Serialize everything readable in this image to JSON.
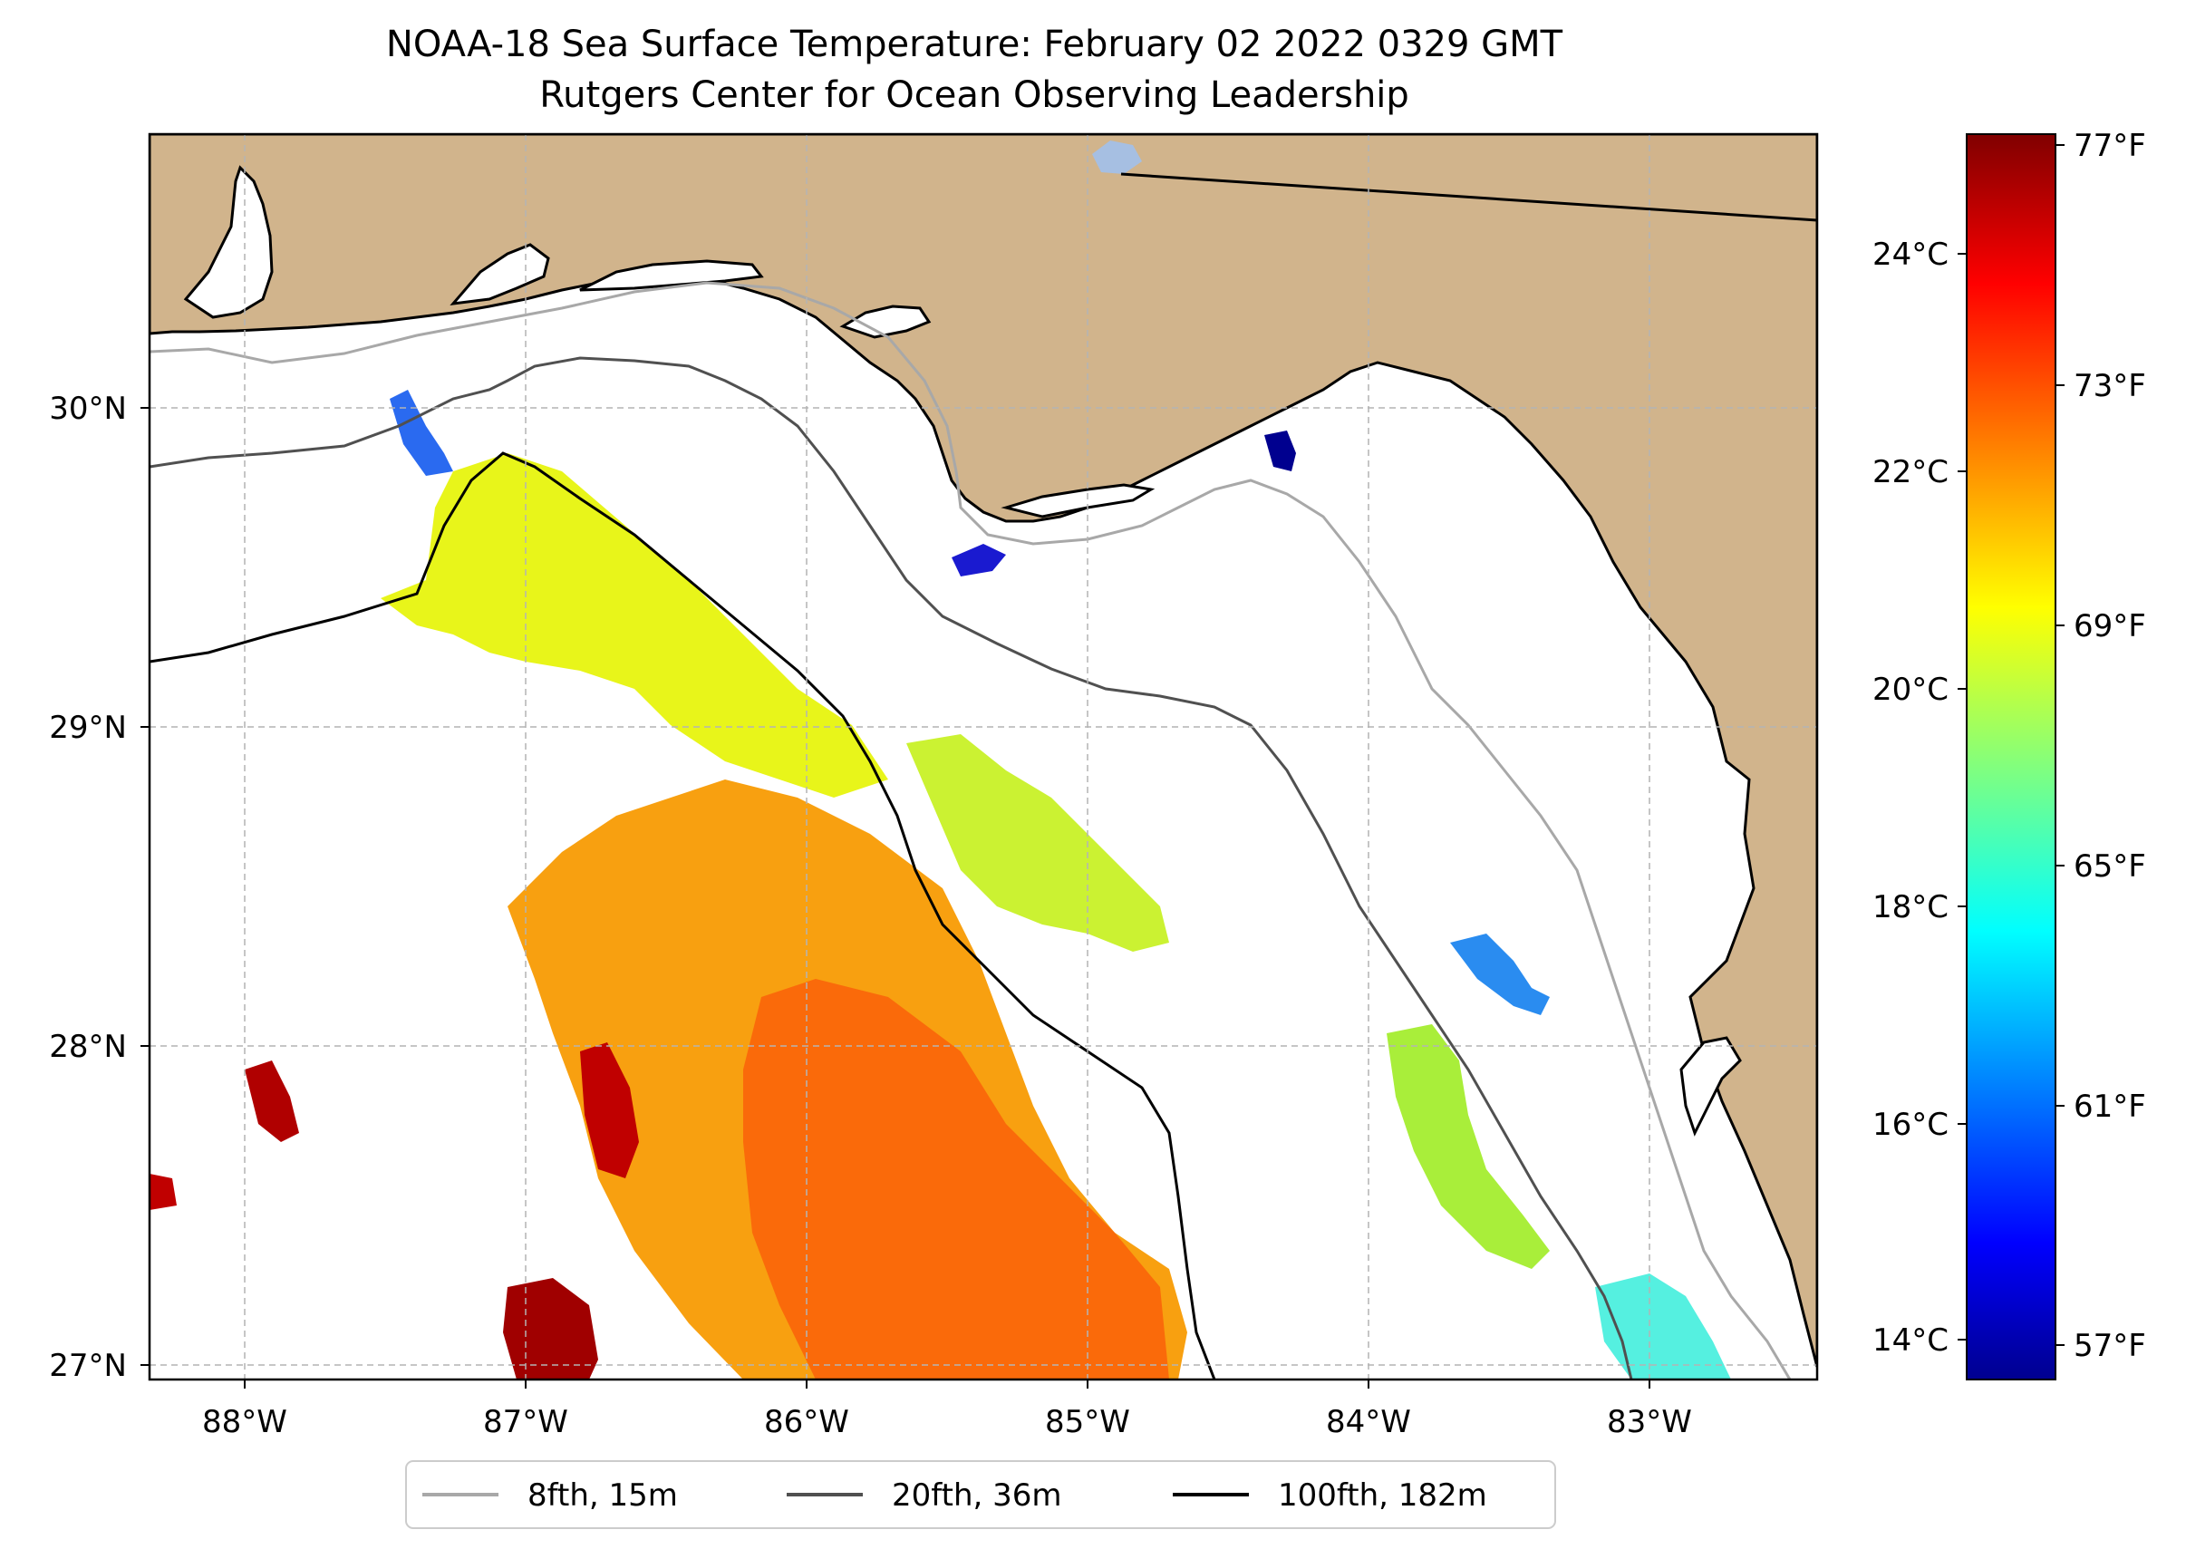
{
  "title": {
    "line1": "NOAA-18 Sea Surface Temperature: February 02 2022 0329 GMT",
    "line2": "Rutgers Center for Ocean Observing Leadership"
  },
  "map": {
    "lon_range": [
      -88.33,
      -82.4
    ],
    "lat_range": [
      26.93,
      30.87
    ],
    "lat_ticks": [
      {
        "value": 30,
        "label": "30°N"
      },
      {
        "value": 29,
        "label": "29°N"
      },
      {
        "value": 28,
        "label": "28°N"
      },
      {
        "value": 27,
        "label": "27°N"
      }
    ],
    "lon_ticks": [
      {
        "value": -88,
        "label": "88°W"
      },
      {
        "value": -87,
        "label": "87°W"
      },
      {
        "value": -86,
        "label": "86°W"
      },
      {
        "value": -85,
        "label": "85°W"
      },
      {
        "value": -84,
        "label": "84°W"
      },
      {
        "value": -83,
        "label": "83°W"
      }
    ],
    "colors": {
      "land": "#d1b48c",
      "water": "#ffffff",
      "grid": "#b4b4b4"
    }
  },
  "colorbar": {
    "range_c": [
      13.7,
      25.0
    ],
    "celsius_ticks": [
      {
        "value": 24,
        "label": "24°C"
      },
      {
        "value": 22,
        "label": "22°C"
      },
      {
        "value": 20,
        "label": "20°C"
      },
      {
        "value": 18,
        "label": "18°C"
      },
      {
        "value": 16,
        "label": "16°C"
      },
      {
        "value": 14,
        "label": "14°C"
      }
    ],
    "fahrenheit_ticks": [
      {
        "value": 77,
        "label": "77°F"
      },
      {
        "value": 73,
        "label": "73°F"
      },
      {
        "value": 69,
        "label": "69°F"
      },
      {
        "value": 65,
        "label": "65°F"
      },
      {
        "value": 61,
        "label": "61°F"
      },
      {
        "value": 57,
        "label": "57°F"
      }
    ],
    "colormap": [
      "#00008f",
      "#0000ff",
      "#00ffff",
      "#ffff00",
      "#ff0000",
      "#800000"
    ]
  },
  "legend": {
    "items": [
      {
        "label": "8fth, 15m",
        "color": "#a8a8a8"
      },
      {
        "label": "20fth, 36m",
        "color": "#505050"
      },
      {
        "label": "100fth, 182m",
        "color": "#000000"
      }
    ]
  }
}
